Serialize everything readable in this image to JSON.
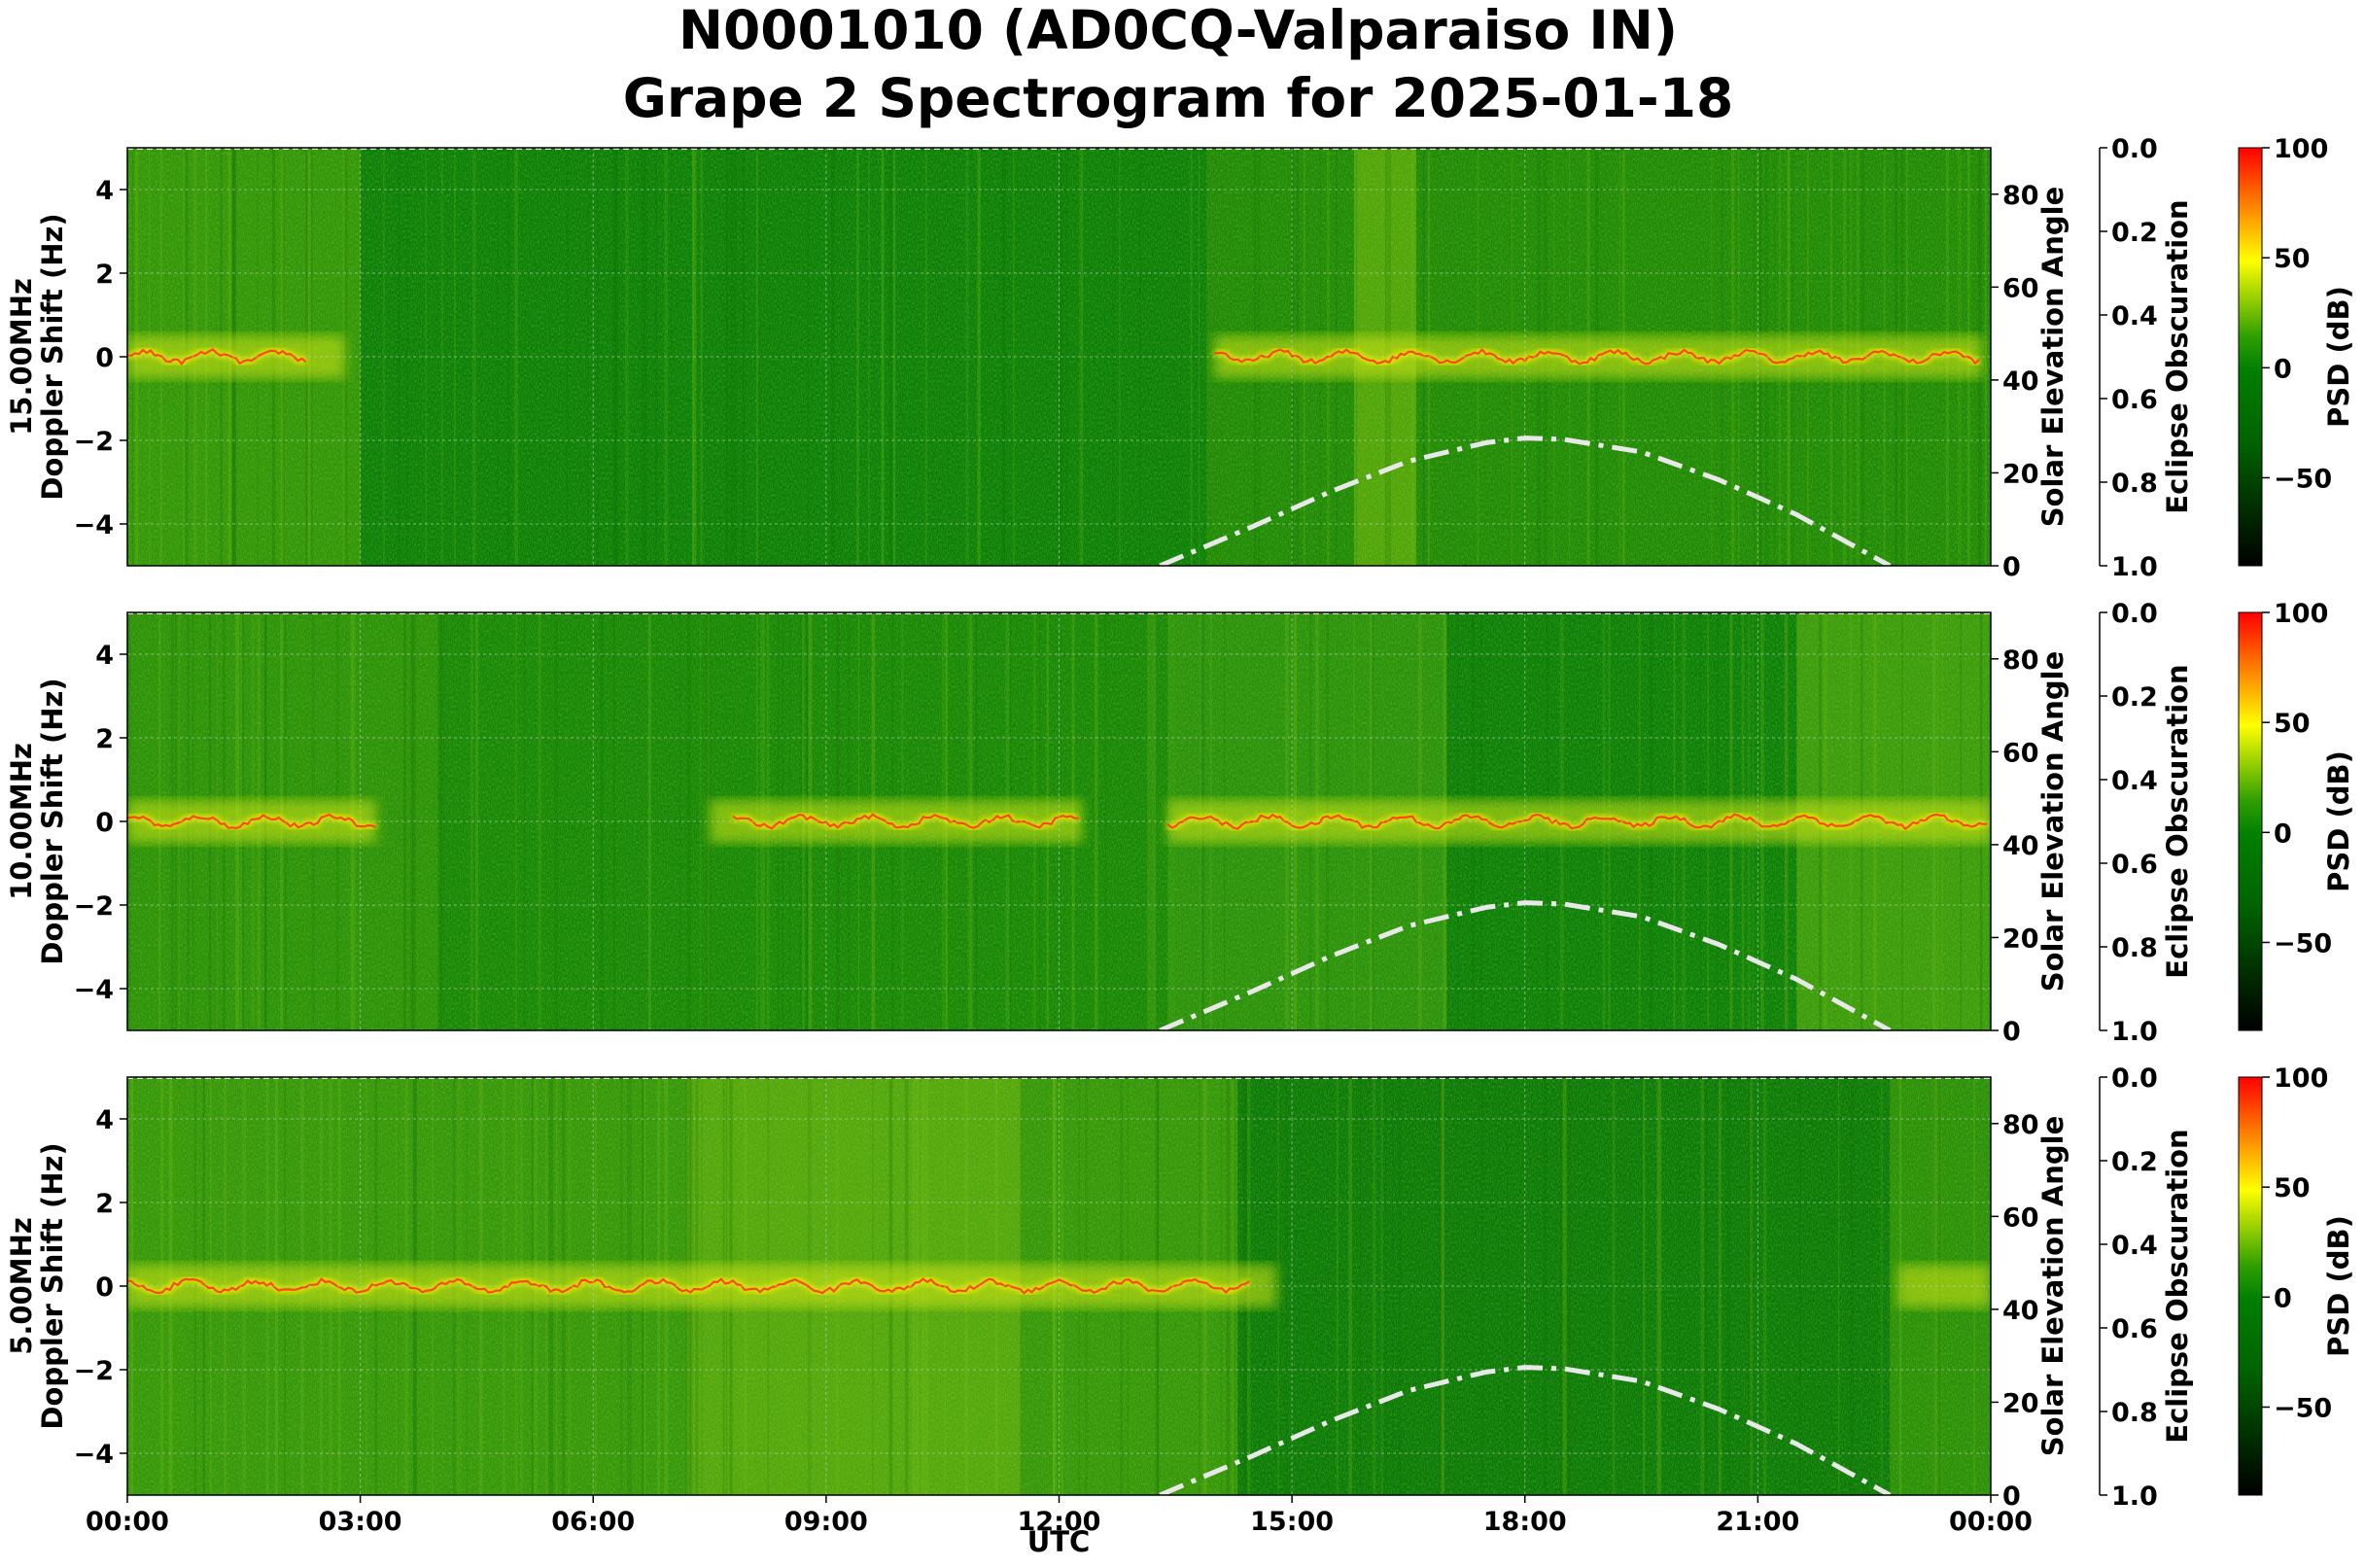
{
  "title_line1": "N0001010 (AD0CQ-Valparaiso IN)",
  "title_line2": "Grape 2 Spectrogram for 2025-01-18",
  "chart_data": {
    "type": "heatmap",
    "xlabel": "UTC",
    "x_ticks": [
      "00:00",
      "03:00",
      "06:00",
      "09:00",
      "12:00",
      "15:00",
      "18:00",
      "21:00",
      "00:00"
    ],
    "xlim_hours": [
      0,
      24
    ],
    "grid": true,
    "colormap_stops": [
      "#000000",
      "#007a00",
      "#ffff00",
      "#ff0000"
    ],
    "solar_curve_color": "#e8e8e8",
    "panels": [
      {
        "name": "15.00MHz",
        "ylabel_line1": "15.00MHz",
        "ylabel_line2": "Doppler Shift (Hz)",
        "ylim": [
          -5,
          5
        ],
        "y_ticks": [
          "4",
          "2",
          "0",
          "−2",
          "−4"
        ],
        "y_tick_values": [
          4,
          2,
          0,
          -2,
          -4
        ],
        "solar_elevation": {
          "label": "Solar Elevation Angle",
          "ylim": [
            0,
            90
          ],
          "ticks": [
            "80",
            "60",
            "40",
            "20",
            "0"
          ],
          "tick_values": [
            80,
            60,
            40,
            20,
            0
          ],
          "curve": {
            "x_hours": [
              13.3,
              14.5,
              15.5,
              16.5,
              17.5,
              18.0,
              18.5,
              19.5,
              20.5,
              21.5,
              22.7
            ],
            "y_deg": [
              0,
              8.5,
              16,
              22.5,
              26.5,
              27.5,
              27.2,
              24.5,
              18.5,
              11,
              0
            ]
          }
        },
        "eclipse": {
          "label": "Eclipse Obscuration",
          "ticks": [
            "0.0",
            "0.2",
            "0.4",
            "0.6",
            "0.8",
            "1.0"
          ]
        },
        "colorbar": {
          "label": "PSD (dB)",
          "ticks": [
            "100",
            "50",
            "0",
            "−50"
          ],
          "tick_values": [
            100,
            50,
            0,
            -50
          ],
          "range": [
            -90,
            100
          ]
        }
      },
      {
        "name": "10.00MHz",
        "ylabel_line1": "10.00MHz",
        "ylabel_line2": "Doppler Shift (Hz)",
        "ylim": [
          -5,
          5
        ],
        "y_ticks": [
          "4",
          "2",
          "0",
          "−2",
          "−4"
        ],
        "y_tick_values": [
          4,
          2,
          0,
          -2,
          -4
        ],
        "solar_elevation": {
          "label": "Solar Elevation Angle",
          "ylim": [
            0,
            90
          ],
          "ticks": [
            "80",
            "60",
            "40",
            "20",
            "0"
          ],
          "tick_values": [
            80,
            60,
            40,
            20,
            0
          ],
          "curve": {
            "x_hours": [
              13.3,
              14.5,
              15.5,
              16.5,
              17.5,
              18.0,
              18.5,
              19.5,
              20.5,
              21.5,
              22.7
            ],
            "y_deg": [
              0,
              8.5,
              16,
              22.5,
              26.5,
              27.5,
              27.2,
              24.5,
              18.5,
              11,
              0
            ]
          }
        },
        "eclipse": {
          "label": "Eclipse Obscuration",
          "ticks": [
            "0.0",
            "0.2",
            "0.4",
            "0.6",
            "0.8",
            "1.0"
          ]
        },
        "colorbar": {
          "label": "PSD (dB)",
          "ticks": [
            "100",
            "50",
            "0",
            "−50"
          ],
          "tick_values": [
            100,
            50,
            0,
            -50
          ],
          "range": [
            -90,
            100
          ]
        }
      },
      {
        "name": "5.00MHz",
        "ylabel_line1": "5.00MHz",
        "ylabel_line2": "Doppler Shift (Hz)",
        "ylim": [
          -5,
          5
        ],
        "y_ticks": [
          "4",
          "2",
          "0",
          "−2",
          "−4"
        ],
        "y_tick_values": [
          4,
          2,
          0,
          -2,
          -4
        ],
        "solar_elevation": {
          "label": "Solar Elevation Angle",
          "ylim": [
            0,
            90
          ],
          "ticks": [
            "80",
            "60",
            "40",
            "20",
            "0"
          ],
          "tick_values": [
            80,
            60,
            40,
            20,
            0
          ],
          "curve": {
            "x_hours": [
              13.3,
              14.5,
              15.5,
              16.5,
              17.5,
              18.0,
              18.5,
              19.5,
              20.5,
              21.5,
              22.7
            ],
            "y_deg": [
              0,
              8.5,
              16,
              22.5,
              26.5,
              27.5,
              27.2,
              24.5,
              18.5,
              11,
              0
            ]
          }
        },
        "eclipse": {
          "label": "Eclipse Obscuration",
          "ticks": [
            "0.0",
            "0.2",
            "0.4",
            "0.6",
            "0.8",
            "1.0"
          ]
        },
        "colorbar": {
          "label": "PSD (dB)",
          "ticks": [
            "100",
            "50",
            "0",
            "−50"
          ],
          "tick_values": [
            100,
            50,
            0,
            -50
          ],
          "range": [
            -90,
            100
          ]
        }
      }
    ]
  }
}
